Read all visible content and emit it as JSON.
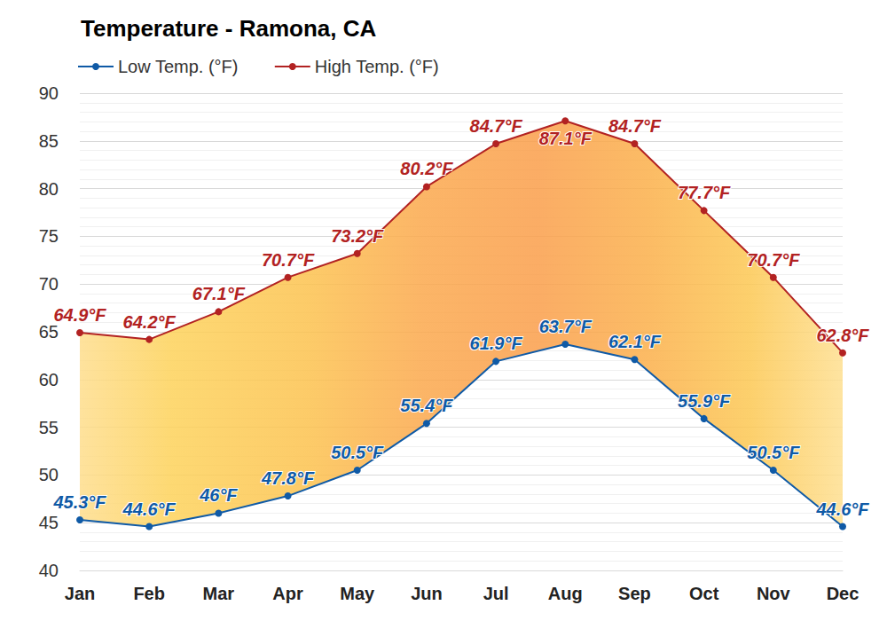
{
  "chart_data": {
    "type": "line",
    "title": "Temperature - Ramona, CA",
    "categories": [
      "Jan",
      "Feb",
      "Mar",
      "Apr",
      "May",
      "Jun",
      "Jul",
      "Aug",
      "Sep",
      "Oct",
      "Nov",
      "Dec"
    ],
    "series": [
      {
        "name": "Low Temp. (°F)",
        "color": "#0f5aa6",
        "values": [
          45.3,
          44.6,
          46,
          47.8,
          50.5,
          55.4,
          61.9,
          63.7,
          62.1,
          55.9,
          50.5,
          44.6
        ],
        "value_labels": [
          "45.3°F",
          "44.6°F",
          "46°F",
          "47.8°F",
          "50.5°F",
          "55.4°F",
          "61.9°F",
          "63.7°F",
          "62.1°F",
          "55.9°F",
          "50.5°F",
          "44.6°F"
        ]
      },
      {
        "name": "High Temp. (°F)",
        "color": "#b22222",
        "values": [
          64.9,
          64.2,
          67.1,
          70.7,
          73.2,
          80.2,
          84.7,
          87.1,
          84.7,
          77.7,
          70.7,
          62.8
        ],
        "value_labels": [
          "64.9°F",
          "64.2°F",
          "67.1°F",
          "70.7°F",
          "73.2°F",
          "80.2°F",
          "84.7°F",
          "87.1°F",
          "84.7°F",
          "77.7°F",
          "70.7°F",
          "62.8°F"
        ]
      }
    ],
    "ylim": [
      40,
      90
    ],
    "yticks": [
      40,
      45,
      50,
      55,
      60,
      65,
      70,
      75,
      80,
      85,
      90
    ],
    "grid": true,
    "legend": "top-left",
    "data_labels": true,
    "marker": "circle"
  }
}
